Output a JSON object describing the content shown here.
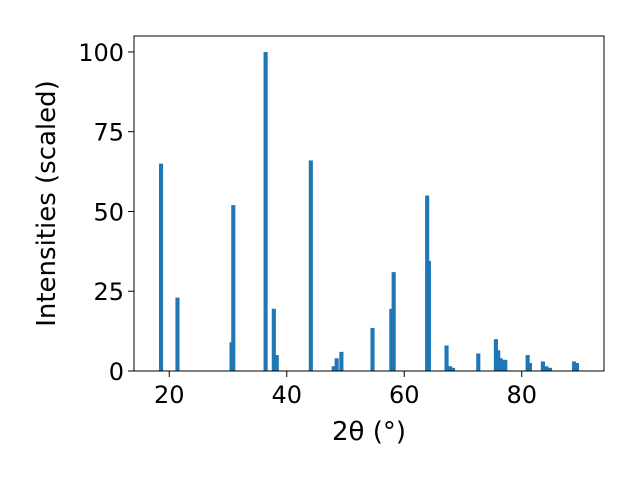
{
  "chart_data": {
    "type": "bar",
    "xlabel": "2θ (°)",
    "ylabel": "Intensities (scaled)",
    "xlim": [
      14,
      94
    ],
    "ylim": [
      0,
      105
    ],
    "xticks": [
      20,
      40,
      60,
      80
    ],
    "yticks": [
      0,
      25,
      50,
      75,
      100
    ],
    "grid": false,
    "bar_color": "#1f77b4",
    "bar_width_deg": 0.7,
    "series": [
      {
        "x": [
          18.6,
          21.4,
          30.6,
          30.9,
          36.4,
          37.8,
          38.3,
          44.1,
          48.0,
          48.5,
          49.3,
          54.6,
          57.8,
          58.2,
          63.9,
          64.2,
          67.2,
          67.8,
          68.3,
          72.6,
          75.6,
          76.0,
          76.4,
          76.8,
          77.2,
          81.0,
          81.4,
          83.6,
          84.2,
          84.8,
          88.9,
          89.4
        ],
        "y": [
          65,
          23,
          9,
          52,
          100,
          19.5,
          5,
          66,
          1.5,
          4,
          6,
          13.5,
          19.5,
          31,
          55,
          34.5,
          8,
          1.5,
          1,
          5.5,
          10,
          6.5,
          4,
          3.5,
          3.5,
          5,
          2.5,
          3,
          1.5,
          1,
          3,
          2.5
        ]
      }
    ]
  }
}
